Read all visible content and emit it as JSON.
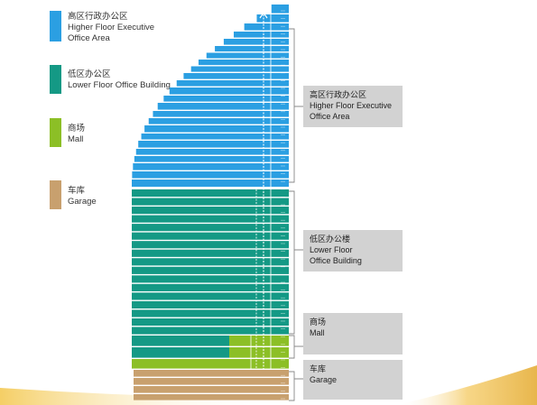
{
  "legend": [
    {
      "cn": "高区行政办公区",
      "en_lines": [
        "Higher Floor Executive",
        "Office Area"
      ],
      "color": "#2b9fe2",
      "icon": "color-swatch"
    },
    {
      "cn": "低区办公区",
      "en_lines": [
        "Lower Floor Office Building"
      ],
      "color": "#149985",
      "icon": "color-swatch"
    },
    {
      "cn": "商场",
      "en_lines": [
        "Mall"
      ],
      "color": "#8cbf26",
      "icon": "color-swatch"
    },
    {
      "cn": "车库",
      "en_lines": [
        "Garage"
      ],
      "color": "#c8a06e",
      "icon": "color-swatch"
    }
  ],
  "callouts": [
    {
      "cn": "高区行政办公区",
      "en_lines": [
        "Higher Floor Executive",
        "Office Area"
      ]
    },
    {
      "cn": "低区办公楼",
      "en_lines": [
        "Lower Floor",
        "Office Building"
      ]
    },
    {
      "cn": "商场",
      "en_lines": [
        "Mall"
      ]
    },
    {
      "cn": "车库",
      "en_lines": [
        "Garage"
      ]
    }
  ],
  "colors": {
    "higher_floor": "#2b9fe2",
    "lower_floor": "#149985",
    "mall": "#8cbf26",
    "garage": "#c8a06e",
    "callout_bg": "#d2d2d2",
    "accent_gold": "#f3c64a"
  }
}
